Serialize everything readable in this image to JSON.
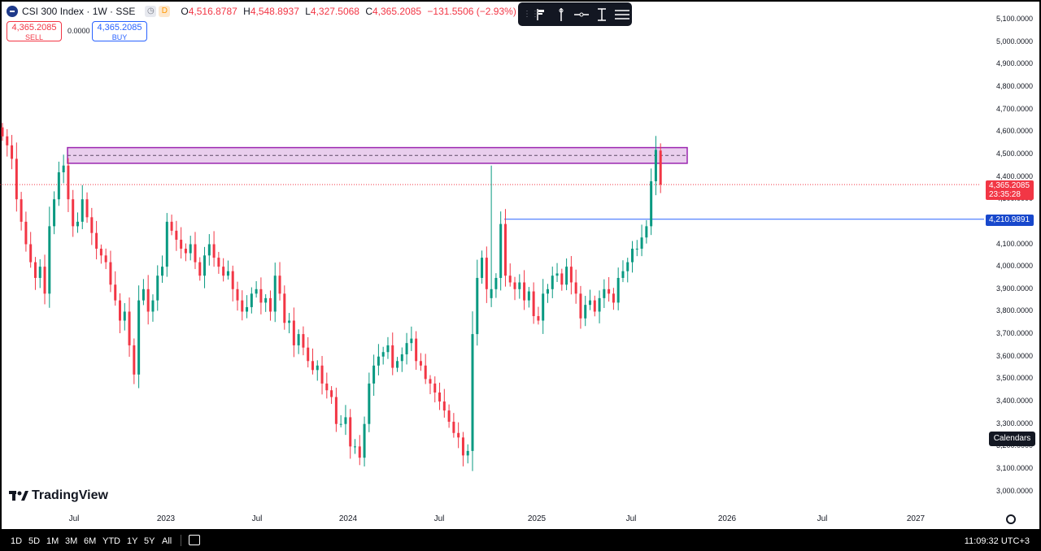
{
  "legend": {
    "symbol_title": "CSI 300 Index · 1W · SSE",
    "badge_d": "D",
    "o_label": "O",
    "o_value": "4,516.8787",
    "h_label": "H",
    "h_value": "4,548.8937",
    "l_label": "L",
    "l_value": "4,327.5068",
    "c_label": "C",
    "c_value": "4,365.2085",
    "change": "−131.5506 (−2.93%)"
  },
  "trade": {
    "sell_price": "4,365.2085",
    "sell_label": "SELL",
    "spread": "0.0000",
    "buy_price": "4,365.2085",
    "buy_label": "BUY"
  },
  "toolbar": {
    "icons": [
      "drag-handle",
      "flag-icon",
      "vertical-line-icon",
      "horizontal-line-icon",
      "text-cursor-icon",
      "menu-lines-icon"
    ]
  },
  "price_tags": {
    "current_price": "4,365.2085",
    "countdown": "23:35:28",
    "hline_price": "4,210.9891"
  },
  "calendars_label": "Calendars",
  "brand": "TradingView",
  "bottom_bar": {
    "ranges": [
      "1D",
      "5D",
      "1M",
      "3M",
      "6M",
      "YTD",
      "1Y",
      "5Y",
      "All"
    ],
    "clock": "11:09:32 UTC+3"
  },
  "colors": {
    "up": "#089981",
    "down": "#f23645",
    "zone_fill": "#e1bee7",
    "zone_border": "#9c27b0",
    "hline": "#2962ff"
  },
  "chart_data": {
    "type": "candlestick",
    "ylim": [
      2950,
      5150
    ],
    "y_ticks": [
      3000,
      3100,
      3200,
      3300,
      3400,
      3500,
      3600,
      3700,
      3800,
      3900,
      4000,
      4100,
      4200,
      4300,
      4400,
      4500,
      4600,
      4700,
      4800,
      4900,
      5000,
      5100
    ],
    "y_tick_labels": [
      "3,000.0000",
      "3,100.0000",
      "3,200.0000",
      "3,300.0000",
      "3,400.0000",
      "3,500.0000",
      "3,600.0000",
      "3,700.0000",
      "3,800.0000",
      "3,900.0000",
      "4,000.0000",
      "4,100.0000",
      "4,200.0000",
      "4,300.0000",
      "4,400.0000",
      "4,500.0000",
      "4,600.0000",
      "4,700.0000",
      "4,800.0000",
      "4,900.0000",
      "5,000.0000",
      "5,100.0000"
    ],
    "x_tick_labels": [
      "Jul",
      "2023",
      "Jul",
      "2024",
      "Jul",
      "2025",
      "Jul",
      "2026",
      "Jul",
      "2027"
    ],
    "x_tick_dates": [
      "2022-07",
      "2023-01",
      "2023-07",
      "2024-01",
      "2024-07",
      "2025-01",
      "2025-07",
      "2026-01",
      "2026-07",
      "2027-01"
    ],
    "closes": [
      4580,
      4540,
      4480,
      4300,
      4200,
      4100,
      4020,
      3950,
      4000,
      3880,
      4180,
      4300,
      4420,
      4450,
      4300,
      4180,
      4200,
      4300,
      4220,
      4150,
      4080,
      4050,
      4020,
      3920,
      3850,
      3760,
      3800,
      3650,
      3520,
      3850,
      3900,
      3800,
      3850,
      3960,
      4000,
      4200,
      4160,
      4120,
      4080,
      4060,
      4100,
      4020,
      3960,
      4050,
      4100,
      4040,
      4000,
      3960,
      3980,
      3900,
      3850,
      3800,
      3820,
      3880,
      3900,
      3840,
      3860,
      3800,
      3960,
      3880,
      3750,
      3760,
      3650,
      3700,
      3640,
      3580,
      3540,
      3560,
      3480,
      3450,
      3420,
      3300,
      3300,
      3330,
      3200,
      3200,
      3150,
      3300,
      3480,
      3560,
      3600,
      3620,
      3650,
      3550,
      3580,
      3610,
      3660,
      3680,
      3580,
      3560,
      3500,
      3480,
      3440,
      3400,
      3360,
      3310,
      3260,
      3240,
      3160,
      3180,
      3700,
      3950,
      4040,
      3900,
      3890,
      3950,
      4190,
      3960,
      3930,
      3900,
      3930,
      3850,
      3890,
      3780,
      3760,
      3880,
      3900,
      3960,
      3970,
      3920,
      4000,
      3930,
      3880,
      3770,
      3830,
      3850,
      3800,
      3860,
      3900,
      3880,
      3840,
      3950,
      3980,
      4020,
      4080,
      4080,
      4130,
      4180,
      4380,
      4520,
      4365
    ],
    "last_candle": {
      "open": 4516.8787,
      "high": 4548.8937,
      "low": 4327.5068,
      "close": 4365.2085
    },
    "horizontal_line": 4210.9891,
    "current_price_line": 4365.2085,
    "zone": {
      "low": 4460,
      "high": 4530,
      "mid": 4495
    },
    "spike_bar": {
      "open": 3860,
      "high": 4450,
      "low": 3820,
      "close": 3900
    }
  }
}
